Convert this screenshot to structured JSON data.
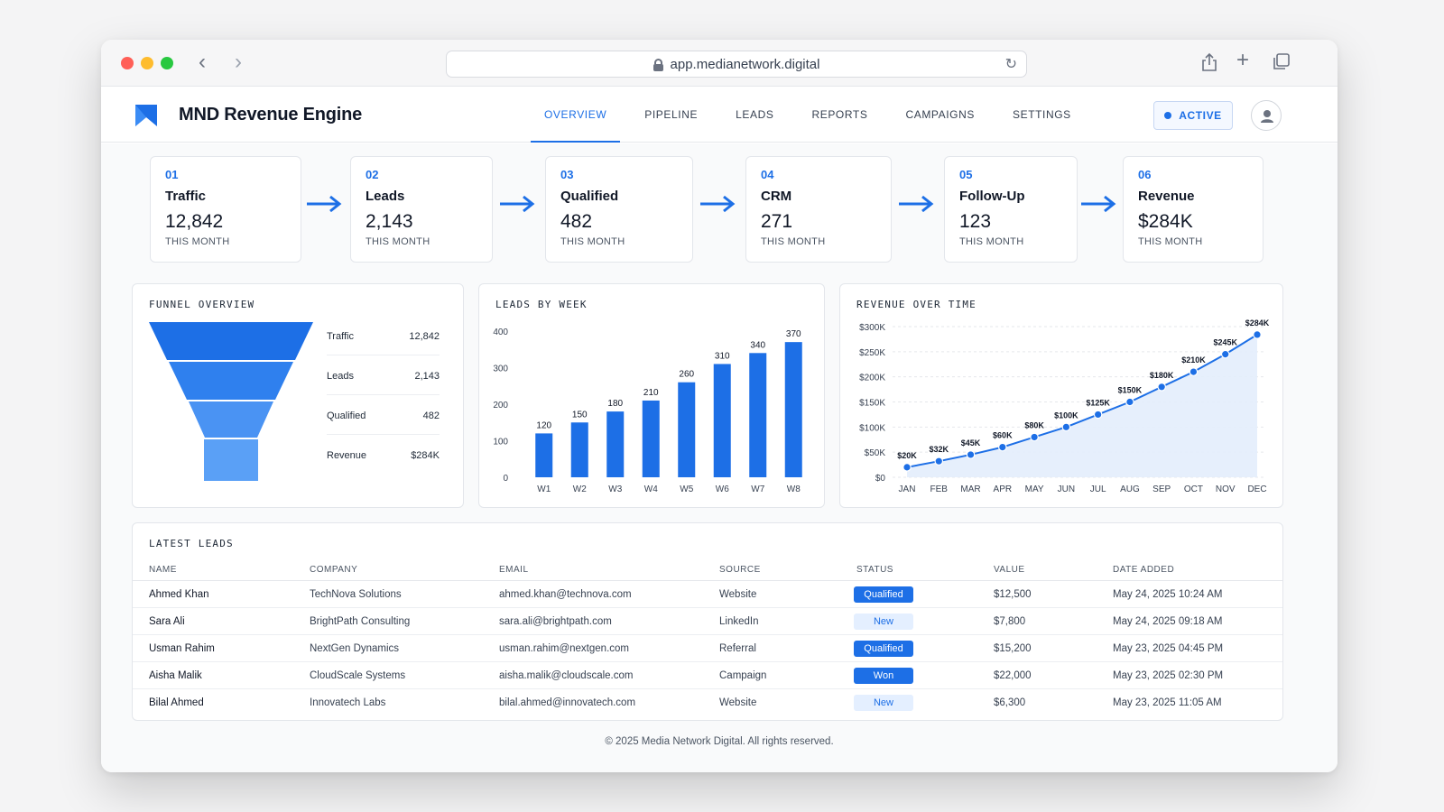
{
  "browser": {
    "url": "app.medianetwork.digital"
  },
  "app": {
    "title": "MND Revenue Engine",
    "status_label": "ACTIVE"
  },
  "nav": {
    "items": [
      "OVERVIEW",
      "PIPELINE",
      "LEADS",
      "REPORTS",
      "CAMPAIGNS",
      "SETTINGS"
    ],
    "active": "OVERVIEW"
  },
  "steps": [
    {
      "num": "01",
      "name": "Traffic",
      "value": "12,842",
      "sub": "THIS MONTH"
    },
    {
      "num": "02",
      "name": "Leads",
      "value": "2,143",
      "sub": "THIS MONTH"
    },
    {
      "num": "03",
      "name": "Qualified",
      "value": "482",
      "sub": "THIS MONTH"
    },
    {
      "num": "04",
      "name": "CRM",
      "value": "271",
      "sub": "THIS MONTH"
    },
    {
      "num": "05",
      "name": "Follow-Up",
      "value": "123",
      "sub": "THIS MONTH"
    },
    {
      "num": "06",
      "name": "Revenue",
      "value": "$284K",
      "sub": "THIS MONTH"
    }
  ],
  "funnel": {
    "title": "FUNNEL OVERVIEW",
    "rows": [
      {
        "label": "Traffic",
        "value": "12,842"
      },
      {
        "label": "Leads",
        "value": "2,143"
      },
      {
        "label": "Qualified",
        "value": "482"
      },
      {
        "label": "Revenue",
        "value": "$284K"
      }
    ]
  },
  "leads_chart": {
    "title": "LEADS BY WEEK"
  },
  "revenue_chart": {
    "title": "REVENUE OVER TIME"
  },
  "chart_data": [
    {
      "type": "bar",
      "title": "LEADS BY WEEK",
      "categories": [
        "W1",
        "W2",
        "W3",
        "W4",
        "W5",
        "W6",
        "W7",
        "W8"
      ],
      "values": [
        120,
        150,
        180,
        210,
        260,
        310,
        340,
        370
      ],
      "data_labels": [
        "120",
        "150",
        "180",
        "210",
        "260",
        "310",
        "340",
        "370"
      ],
      "yticks": [
        "0",
        "100",
        "200",
        "300",
        "400"
      ],
      "ylim": [
        0,
        400
      ],
      "color": "#1d6fe6",
      "grid": false
    },
    {
      "type": "area",
      "title": "REVENUE OVER TIME",
      "categories": [
        "JAN",
        "FEB",
        "MAR",
        "APR",
        "MAY",
        "JUN",
        "JUL",
        "AUG",
        "SEP",
        "OCT",
        "NOV",
        "DEC"
      ],
      "values": [
        20,
        32,
        45,
        60,
        80,
        100,
        125,
        150,
        180,
        210,
        245,
        284
      ],
      "data_labels": [
        "$20K",
        "$32K",
        "$45K",
        "$60K",
        "$80K",
        "$100K",
        "$125K",
        "$150K",
        "$180K",
        "$210K",
        "$245K",
        "$284K"
      ],
      "yticks": [
        "$0",
        "$50K",
        "$100K",
        "$150K",
        "$200K",
        "$250K",
        "$300K"
      ],
      "ylim": [
        0,
        300
      ],
      "color": "#1d6fe6",
      "grid": true
    }
  ],
  "leads_table": {
    "title": "LATEST LEADS",
    "columns": [
      "NAME",
      "COMPANY",
      "EMAIL",
      "SOURCE",
      "STATUS",
      "VALUE",
      "DATE ADDED"
    ],
    "rows": [
      {
        "name": "Ahmed Khan",
        "company": "TechNova Solutions",
        "email": "ahmed.khan@technova.com",
        "source": "Website",
        "status": "Qualified",
        "value": "$12,500",
        "date": "May 24, 2025 10:24 AM"
      },
      {
        "name": "Sara Ali",
        "company": "BrightPath Consulting",
        "email": "sara.ali@brightpath.com",
        "source": "LinkedIn",
        "status": "New",
        "value": "$7,800",
        "date": "May 24, 2025 09:18 AM"
      },
      {
        "name": "Usman Rahim",
        "company": "NextGen Dynamics",
        "email": "usman.rahim@nextgen.com",
        "source": "Referral",
        "status": "Qualified",
        "value": "$15,200",
        "date": "May 23, 2025 04:45 PM"
      },
      {
        "name": "Aisha Malik",
        "company": "CloudScale Systems",
        "email": "aisha.malik@cloudscale.com",
        "source": "Campaign",
        "status": "Won",
        "value": "$22,000",
        "date": "May 23, 2025 02:30 PM"
      },
      {
        "name": "Bilal Ahmed",
        "company": "Innovatech Labs",
        "email": "bilal.ahmed@innovatech.com",
        "source": "Website",
        "status": "New",
        "value": "$6,300",
        "date": "May 23, 2025 11:05 AM"
      }
    ]
  },
  "footer": {
    "text": "© 2025 Media Network Digital. All rights reserved."
  },
  "colors": {
    "accent": "#1d6fe6",
    "badge_light": "#e4efff"
  },
  "icons": {
    "lock": "lock-icon",
    "reload": "reload-icon",
    "share": "share-icon",
    "new_tab": "plus-icon",
    "tabs": "tabs-icon",
    "logo": "logo-icon",
    "avatar": "user-icon"
  }
}
